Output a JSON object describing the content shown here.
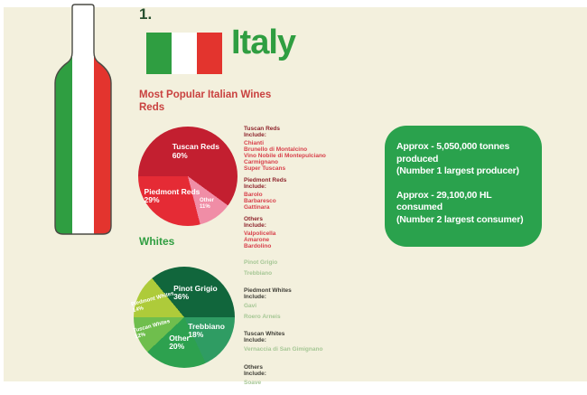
{
  "header": {
    "rank": "1.",
    "country": "Italy",
    "flag_green": "#2f9e41",
    "flag_white": "#ffffff",
    "flag_red": "#e3342e"
  },
  "reds_section": {
    "heading_line1": "Most Popular Italian Wines",
    "heading_line2": "Reds",
    "groups": [
      {
        "title": "Tuscan Reds",
        "include_label": "Include:",
        "items": [
          "Chianti",
          "Brunello di Montalcino",
          "Vino Nobile di Montepulciano",
          "Carmignano",
          "Super Tuscans"
        ]
      },
      {
        "title": "Piedmont Reds",
        "include_label": "Include:",
        "items": [
          "Barolo",
          "Barbaresco",
          "Gattinara"
        ]
      },
      {
        "title": "Others",
        "include_label": "Include:",
        "items": [
          "Valpolicella",
          "Amarone",
          "Bardolino"
        ]
      }
    ]
  },
  "whites_section": {
    "heading": "Whites",
    "groups": [
      {
        "title": "",
        "include_label": "",
        "items": [
          "Pinot Grigio",
          "Trebbiano"
        ]
      },
      {
        "title": "Piedmont Whites",
        "include_label": "Include:",
        "items": [
          "Gavi",
          "Roero Arneis"
        ]
      },
      {
        "title": "Tuscan Whites",
        "include_label": "Include:",
        "items": [
          "Vernaccia di San Gimignano"
        ]
      },
      {
        "title": "Others",
        "include_label": "Include:",
        "items": [
          "Soave"
        ]
      }
    ]
  },
  "stats_box": {
    "background": "#2aa24d",
    "produced_line": "Approx - 5,050,000 tonnes produced",
    "produced_note": "(Number 1 largest producer)",
    "consumed_line": "Approx - 29,100,00 HL consumed",
    "consumed_note": "(Number 2 largest consumer)"
  },
  "chart_data": [
    {
      "type": "pie",
      "title": "Reds",
      "start_angle": 270,
      "legend_position": "none",
      "slices": [
        {
          "label": "Tuscan Reds",
          "value": 60,
          "color": "#c31f30"
        },
        {
          "label": "Other",
          "value": 11,
          "color": "#f08da6"
        },
        {
          "label": "Piedmont Reds",
          "value": 29,
          "color": "#e52b35"
        }
      ]
    },
    {
      "type": "pie",
      "title": "Whites",
      "start_angle": 320.4,
      "legend_position": "none",
      "slices": [
        {
          "label": "Pinot Grigio",
          "value": 36,
          "color": "#11663c"
        },
        {
          "label": "Trebbiano",
          "value": 18,
          "color": "#2f9c63"
        },
        {
          "label": "Other",
          "value": 20,
          "color": "#2da14f"
        },
        {
          "label": "Tuscan Whites",
          "value": 12,
          "color": "#6fbe4d"
        },
        {
          "label": "Piedmont Whites",
          "value": 14,
          "color": "#aecb3a"
        }
      ]
    }
  ]
}
